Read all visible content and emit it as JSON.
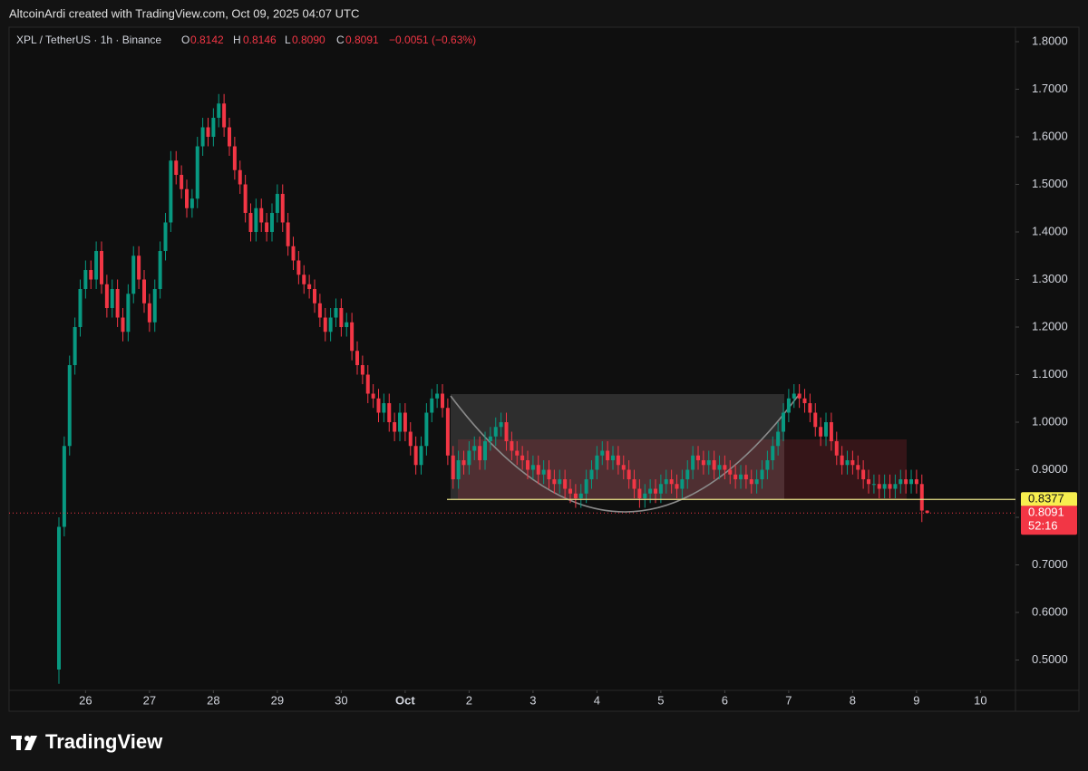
{
  "chart_data": {
    "type": "candlestick",
    "attribution": "AltcoinArdi created with TradingView.com, Oct 09, 2025 04:07 UTC",
    "title": "XPL / TetherUS · 1h · Binance",
    "header": {
      "o": "O",
      "open": "0.8142",
      "h": "H",
      "high": "0.8146",
      "l": "L",
      "low": "0.8090",
      "c": "C",
      "close": "0.8091",
      "change": "−0.0051 (−0.63%)"
    },
    "brand": "TradingView",
    "up_color": "#089981",
    "down_color": "#f23645",
    "level": 0.8377,
    "last_price": 0.8091,
    "countdown": "52:16",
    "xlim": [
      -9.36,
      179.57
    ],
    "xticks": [
      {
        "value": 5,
        "label": "26"
      },
      {
        "value": 17,
        "label": "27"
      },
      {
        "value": 29,
        "label": "28"
      },
      {
        "value": 41,
        "label": "29"
      },
      {
        "value": 53,
        "label": "30"
      },
      {
        "value": 65,
        "label": "Oct"
      },
      {
        "value": 77,
        "label": "2"
      },
      {
        "value": 89,
        "label": "3"
      },
      {
        "value": 101,
        "label": "4"
      },
      {
        "value": 113,
        "label": "5"
      },
      {
        "value": 125,
        "label": "6"
      },
      {
        "value": 137,
        "label": "7"
      },
      {
        "value": 149,
        "label": "8"
      },
      {
        "value": 161,
        "label": "9"
      },
      {
        "value": 173,
        "label": "10"
      }
    ],
    "ylim": [
      0.4362,
      1.8305
    ],
    "yticks": [
      {
        "value": 0.5,
        "label": "0.5000"
      },
      {
        "value": 0.6,
        "label": "0.6000"
      },
      {
        "value": 0.7,
        "label": "0.7000"
      },
      {
        "value": 0.8,
        "label": "0.8000"
      },
      {
        "value": 0.9,
        "label": "0.9000"
      },
      {
        "value": 1.0,
        "label": "1.0000"
      },
      {
        "value": 1.1,
        "label": "1.1000"
      },
      {
        "value": 1.2,
        "label": "1.2000"
      },
      {
        "value": 1.3,
        "label": "1.3000"
      },
      {
        "value": 1.4,
        "label": "1.4000"
      },
      {
        "value": 1.5,
        "label": "1.5000"
      },
      {
        "value": 1.6,
        "label": "1.6000"
      },
      {
        "value": 1.7,
        "label": "1.7000"
      },
      {
        "value": 1.8,
        "label": "1.8000"
      }
    ],
    "open": [
      0.48,
      0.78,
      0.95,
      1.12,
      1.2,
      1.28,
      1.32,
      1.3,
      1.36,
      1.29,
      1.24,
      1.28,
      1.22,
      1.19,
      1.27,
      1.35,
      1.3,
      1.25,
      1.21,
      1.28,
      1.36,
      1.42,
      1.55,
      1.52,
      1.49,
      1.45,
      1.47,
      1.58,
      1.62,
      1.6,
      1.64,
      1.67,
      1.62,
      1.58,
      1.53,
      1.5,
      1.44,
      1.4,
      1.45,
      1.42,
      1.4,
      1.44,
      1.48,
      1.42,
      1.37,
      1.34,
      1.31,
      1.29,
      1.28,
      1.25,
      1.22,
      1.19,
      1.22,
      1.24,
      1.2,
      1.21,
      1.15,
      1.12,
      1.1,
      1.06,
      1.05,
      1.02,
      1.04,
      1.0,
      0.98,
      1.02,
      0.98,
      0.95,
      0.91,
      0.95,
      1.02,
      1.05,
      1.06,
      1.03,
      0.93,
      0.88,
      0.92,
      0.91,
      0.94,
      0.95,
      0.92,
      0.96,
      0.97,
      0.99,
      1.0,
      0.96,
      0.94,
      0.93,
      0.92,
      0.9,
      0.91,
      0.89,
      0.9,
      0.88,
      0.87,
      0.88,
      0.86,
      0.85,
      0.84,
      0.85,
      0.88,
      0.9,
      0.93,
      0.94,
      0.92,
      0.93,
      0.91,
      0.9,
      0.88,
      0.86,
      0.84,
      0.85,
      0.86,
      0.85,
      0.87,
      0.88,
      0.87,
      0.86,
      0.88,
      0.9,
      0.93,
      0.92,
      0.91,
      0.92,
      0.9,
      0.91,
      0.9,
      0.89,
      0.88,
      0.89,
      0.88,
      0.87,
      0.88,
      0.9,
      0.92,
      0.95,
      0.98,
      1.02,
      1.05,
      1.06,
      1.05,
      1.04,
      1.02,
      0.99,
      0.97,
      1.0,
      0.96,
      0.93,
      0.91,
      0.92,
      0.91,
      0.9,
      0.88,
      0.87,
      0.87,
      0.86,
      0.87,
      0.86,
      0.87,
      0.88,
      0.87,
      0.88,
      0.87,
      0.8142
    ],
    "high": [
      0.8,
      0.97,
      1.14,
      1.22,
      1.3,
      1.34,
      1.34,
      1.38,
      1.38,
      1.31,
      1.3,
      1.3,
      1.24,
      1.29,
      1.37,
      1.37,
      1.32,
      1.27,
      1.3,
      1.38,
      1.44,
      1.57,
      1.57,
      1.54,
      1.51,
      1.49,
      1.6,
      1.64,
      1.64,
      1.66,
      1.69,
      1.69,
      1.64,
      1.6,
      1.55,
      1.52,
      1.46,
      1.47,
      1.47,
      1.44,
      1.46,
      1.5,
      1.5,
      1.44,
      1.39,
      1.36,
      1.33,
      1.31,
      1.3,
      1.27,
      1.24,
      1.24,
      1.26,
      1.26,
      1.23,
      1.23,
      1.17,
      1.14,
      1.12,
      1.08,
      1.07,
      1.06,
      1.06,
      1.02,
      1.04,
      1.04,
      1.0,
      0.97,
      0.97,
      1.04,
      1.07,
      1.08,
      1.08,
      1.05,
      0.95,
      0.94,
      0.94,
      0.96,
      0.97,
      0.97,
      0.98,
      0.99,
      1.01,
      1.02,
      1.02,
      0.98,
      0.96,
      0.95,
      0.94,
      0.93,
      0.93,
      0.92,
      0.92,
      0.9,
      0.9,
      0.9,
      0.88,
      0.87,
      0.87,
      0.9,
      0.92,
      0.95,
      0.96,
      0.96,
      0.95,
      0.95,
      0.93,
      0.92,
      0.9,
      0.88,
      0.87,
      0.88,
      0.88,
      0.89,
      0.9,
      0.9,
      0.89,
      0.9,
      0.92,
      0.95,
      0.95,
      0.94,
      0.94,
      0.94,
      0.93,
      0.93,
      0.92,
      0.91,
      0.91,
      0.91,
      0.9,
      0.9,
      0.92,
      0.94,
      0.97,
      1.0,
      1.04,
      1.07,
      1.08,
      1.08,
      1.07,
      1.06,
      1.04,
      1.01,
      1.02,
      1.02,
      0.98,
      0.95,
      0.94,
      0.94,
      0.93,
      0.92,
      0.9,
      0.89,
      0.89,
      0.89,
      0.89,
      0.89,
      0.9,
      0.9,
      0.9,
      0.9,
      0.89,
      0.8146
    ],
    "low": [
      0.45,
      0.76,
      0.93,
      1.1,
      1.18,
      1.26,
      1.28,
      1.28,
      1.27,
      1.22,
      1.22,
      1.2,
      1.17,
      1.17,
      1.25,
      1.28,
      1.23,
      1.19,
      1.19,
      1.26,
      1.34,
      1.4,
      1.5,
      1.47,
      1.43,
      1.43,
      1.45,
      1.56,
      1.58,
      1.58,
      1.62,
      1.6,
      1.56,
      1.51,
      1.48,
      1.42,
      1.38,
      1.38,
      1.4,
      1.38,
      1.38,
      1.42,
      1.4,
      1.35,
      1.32,
      1.29,
      1.27,
      1.26,
      1.23,
      1.2,
      1.17,
      1.17,
      1.2,
      1.18,
      1.18,
      1.13,
      1.1,
      1.08,
      1.04,
      1.03,
      1.0,
      1.0,
      0.98,
      0.96,
      0.96,
      0.96,
      0.93,
      0.89,
      0.89,
      0.93,
      1.0,
      1.03,
      1.01,
      0.91,
      0.86,
      0.86,
      0.89,
      0.89,
      0.92,
      0.9,
      0.9,
      0.94,
      0.95,
      0.97,
      0.94,
      0.92,
      0.91,
      0.9,
      0.88,
      0.88,
      0.87,
      0.87,
      0.86,
      0.85,
      0.85,
      0.84,
      0.83,
      0.82,
      0.82,
      0.83,
      0.86,
      0.88,
      0.91,
      0.9,
      0.9,
      0.89,
      0.88,
      0.86,
      0.84,
      0.82,
      0.82,
      0.83,
      0.83,
      0.83,
      0.85,
      0.85,
      0.84,
      0.84,
      0.86,
      0.88,
      0.9,
      0.89,
      0.89,
      0.88,
      0.88,
      0.88,
      0.87,
      0.86,
      0.86,
      0.86,
      0.85,
      0.85,
      0.86,
      0.88,
      0.9,
      0.93,
      0.96,
      1.0,
      1.03,
      1.03,
      1.02,
      1.0,
      0.97,
      0.95,
      0.95,
      0.94,
      0.91,
      0.89,
      0.89,
      0.89,
      0.88,
      0.86,
      0.85,
      0.85,
      0.84,
      0.84,
      0.84,
      0.84,
      0.85,
      0.85,
      0.85,
      0.85,
      0.79,
      0.809
    ],
    "close": [
      0.78,
      0.95,
      1.12,
      1.2,
      1.28,
      1.32,
      1.3,
      1.36,
      1.29,
      1.24,
      1.28,
      1.22,
      1.19,
      1.27,
      1.35,
      1.3,
      1.25,
      1.21,
      1.28,
      1.36,
      1.42,
      1.55,
      1.52,
      1.49,
      1.45,
      1.47,
      1.58,
      1.62,
      1.6,
      1.64,
      1.67,
      1.62,
      1.58,
      1.53,
      1.5,
      1.44,
      1.4,
      1.45,
      1.42,
      1.4,
      1.44,
      1.48,
      1.42,
      1.37,
      1.34,
      1.31,
      1.29,
      1.28,
      1.25,
      1.22,
      1.19,
      1.22,
      1.24,
      1.2,
      1.21,
      1.15,
      1.12,
      1.1,
      1.06,
      1.05,
      1.02,
      1.04,
      1.0,
      0.98,
      1.02,
      0.98,
      0.95,
      0.91,
      0.95,
      1.02,
      1.05,
      1.06,
      1.03,
      0.93,
      0.88,
      0.92,
      0.91,
      0.94,
      0.95,
      0.92,
      0.96,
      0.97,
      0.99,
      1.0,
      0.96,
      0.94,
      0.93,
      0.92,
      0.9,
      0.91,
      0.89,
      0.9,
      0.88,
      0.87,
      0.88,
      0.86,
      0.85,
      0.84,
      0.85,
      0.88,
      0.9,
      0.93,
      0.94,
      0.92,
      0.93,
      0.91,
      0.9,
      0.88,
      0.86,
      0.84,
      0.85,
      0.86,
      0.85,
      0.87,
      0.88,
      0.87,
      0.86,
      0.88,
      0.9,
      0.93,
      0.92,
      0.91,
      0.92,
      0.9,
      0.91,
      0.9,
      0.89,
      0.88,
      0.89,
      0.88,
      0.87,
      0.88,
      0.9,
      0.92,
      0.95,
      0.98,
      1.02,
      1.05,
      1.06,
      1.05,
      1.04,
      1.02,
      0.99,
      0.97,
      1.0,
      0.96,
      0.93,
      0.91,
      0.92,
      0.91,
      0.9,
      0.88,
      0.87,
      0.87,
      0.86,
      0.87,
      0.86,
      0.87,
      0.88,
      0.87,
      0.88,
      0.87,
      0.8142,
      0.8091
    ]
  }
}
